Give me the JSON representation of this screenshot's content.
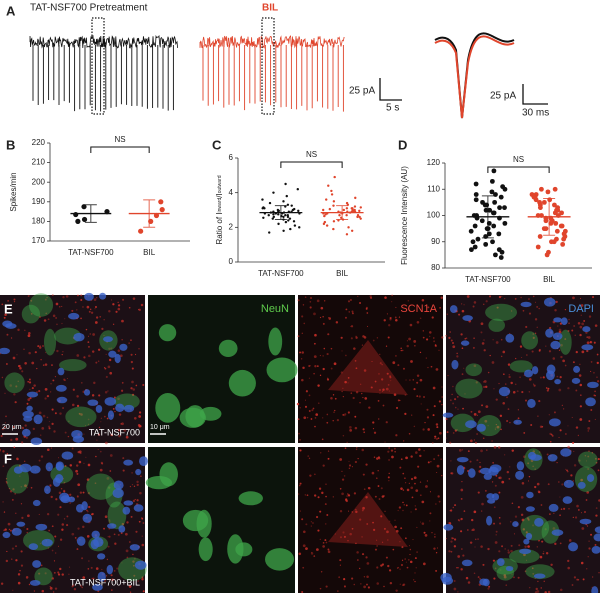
{
  "panel_labels": [
    "A",
    "B",
    "C",
    "D",
    "E",
    "F"
  ],
  "traces": {
    "control_title": "TAT-NSF700 Pretreatment",
    "treated_title": "BIL",
    "control_color": "#111111",
    "treated_color": "#e0452c",
    "scale_current_1": "25 pA",
    "scale_time_1": "5 s",
    "scale_current_2": "25 pA",
    "scale_time_2": "30 ms"
  },
  "chart_data": [
    {
      "type": "dotplot",
      "ylabel": "Spikes/min",
      "ylim": [
        170,
        220
      ],
      "yticks": [
        170,
        180,
        190,
        200,
        210,
        220
      ],
      "categories": [
        "TAT-NSF700",
        "BIL"
      ],
      "annotation": "NS",
      "marker_size": 2.6,
      "groups": [
        {
          "color": "#111111",
          "values": [
            187.5,
            185,
            183.5,
            180,
            181
          ],
          "mean": 184,
          "sd": 4.5
        },
        {
          "color": "#e0452c",
          "values": [
            190,
            186,
            183,
            180,
            175
          ],
          "mean": 184,
          "sd": 7
        }
      ]
    },
    {
      "type": "dotplot",
      "ylabel_parts": [
        "Ratio of I",
        "inward",
        "/I",
        "outward"
      ],
      "ylim": [
        0,
        6
      ],
      "yticks": [
        0,
        2,
        4,
        6
      ],
      "categories": [
        "TAT-NSF700",
        "BIL"
      ],
      "annotation": "NS",
      "marker_size": 1.2,
      "groups": [
        {
          "color": "#111111",
          "values": [
            2.8,
            2.9,
            2.7,
            3.0,
            2.6,
            2.85,
            2.95,
            2.75,
            3.1,
            2.5,
            2.65,
            3.2,
            2.4,
            3.3,
            2.55,
            2.9,
            2.8,
            3.05,
            2.7,
            2.6,
            3.4,
            2.3,
            3.5,
            2.2,
            3.6,
            2.1,
            3.8,
            2.0,
            4.0,
            1.9,
            4.2,
            1.8,
            4.5,
            1.7,
            2.85,
            2.95,
            2.75,
            3.15,
            2.45,
            3.25,
            2.35,
            2.8,
            2.9,
            2.7,
            3.0,
            2.6,
            2.5,
            3.1,
            2.8,
            2.9
          ],
          "mean": 2.85,
          "sd": 0.4
        },
        {
          "color": "#e0452c",
          "values": [
            2.9,
            2.8,
            3.0,
            2.7,
            3.1,
            2.6,
            2.95,
            2.85,
            3.2,
            2.5,
            3.3,
            2.4,
            3.4,
            2.3,
            3.5,
            2.2,
            3.7,
            2.1,
            3.9,
            2.0,
            4.1,
            1.9,
            4.4,
            1.8,
            4.9,
            1.6,
            2.9,
            2.8,
            3.0,
            2.7,
            3.1,
            2.6,
            2.75,
            3.05,
            2.65,
            3.15,
            2.55,
            3.25,
            2.45,
            2.9,
            2.85,
            2.95,
            3.0,
            2.8,
            2.7,
            3.1,
            3.6,
            2.35,
            2.9,
            3.0
          ],
          "mean": 2.85,
          "sd": 0.4
        }
      ]
    },
    {
      "type": "dotplot",
      "ylabel": "Fluorescence Intensity (AU)",
      "ylim": [
        80,
        120
      ],
      "yticks": [
        80,
        90,
        100,
        110,
        120
      ],
      "categories": [
        "TAT-NSF700",
        "BIL"
      ],
      "annotation": "NS",
      "marker_size": 2.4,
      "groups": [
        {
          "color": "#111111",
          "values": [
            117,
            113,
            112,
            111,
            110,
            109,
            108,
            108,
            107,
            106,
            105,
            105,
            104,
            104,
            103,
            102,
            102,
            101,
            100,
            100,
            99,
            99,
            98,
            97,
            97,
            96,
            95,
            95,
            94,
            93,
            93,
            92,
            91,
            90,
            90,
            89,
            88,
            87,
            87,
            86,
            85,
            84,
            96,
            101,
            103
          ],
          "mean": 99.5,
          "sd": 8
        },
        {
          "color": "#e0452c",
          "values": [
            110,
            110,
            109,
            108,
            108,
            107,
            107,
            106,
            106,
            105,
            105,
            104,
            104,
            103,
            102,
            102,
            101,
            101,
            100,
            100,
            99,
            99,
            98,
            98,
            97,
            96,
            96,
            95,
            95,
            94,
            94,
            93,
            92,
            92,
            91,
            91,
            90,
            90,
            89,
            88,
            86,
            85,
            100,
            103,
            97
          ],
          "mean": 99.5,
          "sd": 7
        }
      ]
    }
  ],
  "micrographs": {
    "channels": [
      "NeuN",
      "SCN1A",
      "DAPI"
    ],
    "channel_colors": [
      "#5ecb4c",
      "#e8453c",
      "#4a8fd8"
    ],
    "scale_bars": [
      "20 μm",
      "10 μm"
    ],
    "rows": [
      "TAT-NSF700",
      "TAT-NSF700+BIL"
    ]
  }
}
